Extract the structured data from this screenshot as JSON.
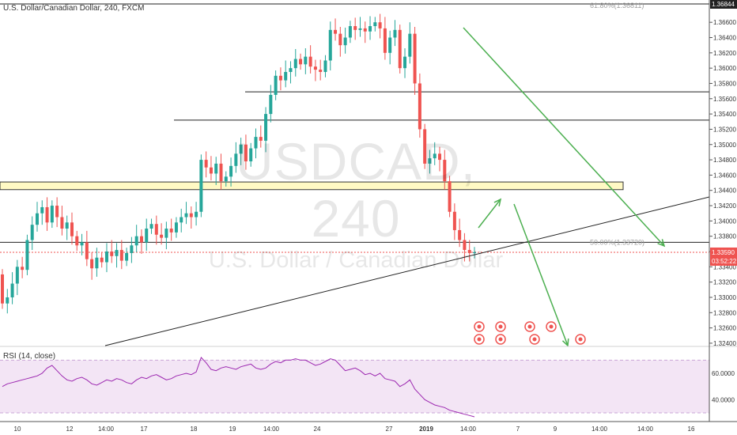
{
  "header": {
    "symbol": "U.S. Dollar/Canadian Dollar, 240, FXCM"
  },
  "watermark": {
    "ticker": "USDCAD, 240",
    "name": "U.S. Dollar / Canadian Dollar"
  },
  "colors": {
    "up": "#26a69a",
    "down": "#ef5350",
    "trend": "#4caf50",
    "fib": "#9e9e9e",
    "rsi": "#9c27b0",
    "band": "#f3e5f5",
    "zone": "#fff9c4"
  },
  "chart_data": [
    {
      "type": "candlestick",
      "ylim": [
        1.323,
        1.369
      ],
      "y_ticks": [
        "1.36600",
        "1.36400",
        "1.36200",
        "1.36000",
        "1.35800",
        "1.35600",
        "1.35400",
        "1.35200",
        "1.35000",
        "1.34800",
        "1.34600",
        "1.34400",
        "1.34200",
        "1.34000",
        "1.33800",
        "1.33600",
        "1.33400",
        "1.33200",
        "1.33000",
        "1.32800",
        "1.32600",
        "1.32400"
      ],
      "x_ticks": [
        "10",
        "12",
        "14:00",
        "17",
        "18",
        "19",
        "14:00",
        "24",
        "27",
        "2019",
        "14:00",
        "7",
        "9",
        "14:00",
        "14:00",
        "16",
        "14:00"
      ],
      "last_price": "1.33590",
      "countdown": "03:52:22",
      "top_label": "1.36844",
      "fib_levels": [
        {
          "label": "61.80%(1.36811)",
          "value": 1.36811
        },
        {
          "label": "50.00%(1.33720)",
          "value": 1.3372
        }
      ],
      "horizontal_lines": [
        1.3569,
        1.3532,
        1.3372
      ],
      "zone": [
        1.3441,
        1.3451
      ],
      "closes": [
        1.3292,
        1.33,
        1.3318,
        1.334,
        1.3336,
        1.3375,
        1.3395,
        1.341,
        1.3418,
        1.3398,
        1.342,
        1.3405,
        1.339,
        1.3398,
        1.338,
        1.3368,
        1.3372,
        1.335,
        1.3338,
        1.3352,
        1.3346,
        1.336,
        1.3354,
        1.3362,
        1.3348,
        1.3358,
        1.3368,
        1.338,
        1.3372,
        1.339,
        1.3396,
        1.3382,
        1.3378,
        1.339,
        1.3385,
        1.3398,
        1.3405,
        1.341,
        1.3405,
        1.3412,
        1.348,
        1.347,
        1.3462,
        1.3475,
        1.3452,
        1.3458,
        1.3472,
        1.3488,
        1.35,
        1.3478,
        1.3495,
        1.351,
        1.3505,
        1.354,
        1.3565,
        1.359,
        1.3584,
        1.3595,
        1.36,
        1.3612,
        1.3605,
        1.3615,
        1.3602,
        1.3598,
        1.3595,
        1.361,
        1.365,
        1.3645,
        1.363,
        1.364,
        1.3655,
        1.365,
        1.3652,
        1.3648,
        1.3655,
        1.366,
        1.3652,
        1.362,
        1.364,
        1.365,
        1.36,
        1.3615,
        1.3645,
        1.358,
        1.352,
        1.3475,
        1.3482,
        1.3488,
        1.348,
        1.3452,
        1.3412,
        1.3388,
        1.3375,
        1.3362,
        1.3358,
        1.3359
      ]
    },
    {
      "type": "line",
      "title": "RSI (14, close)",
      "ylim": [
        20,
        80
      ],
      "y_ticks": [
        "60.0000",
        "40.0000"
      ],
      "band": [
        30,
        70
      ],
      "values": [
        50,
        52,
        53,
        54,
        55,
        56,
        57,
        58,
        60,
        64,
        66,
        62,
        58,
        55,
        54,
        56,
        57,
        55,
        52,
        51,
        53,
        55,
        54,
        56,
        55,
        53,
        52,
        55,
        57,
        56,
        58,
        59,
        57,
        55,
        56,
        58,
        59,
        60,
        59,
        61,
        72,
        68,
        63,
        62,
        64,
        65,
        64,
        63,
        65,
        66,
        67,
        64,
        63,
        64,
        67,
        69,
        68,
        70,
        70,
        71,
        70,
        70,
        68,
        66,
        67,
        69,
        71,
        70,
        66,
        62,
        63,
        64,
        62,
        59,
        60,
        58,
        60,
        56,
        55,
        54,
        50,
        52,
        55,
        48,
        44,
        40,
        38,
        36,
        35,
        34,
        32,
        31,
        30,
        29,
        28,
        27
      ]
    }
  ]
}
